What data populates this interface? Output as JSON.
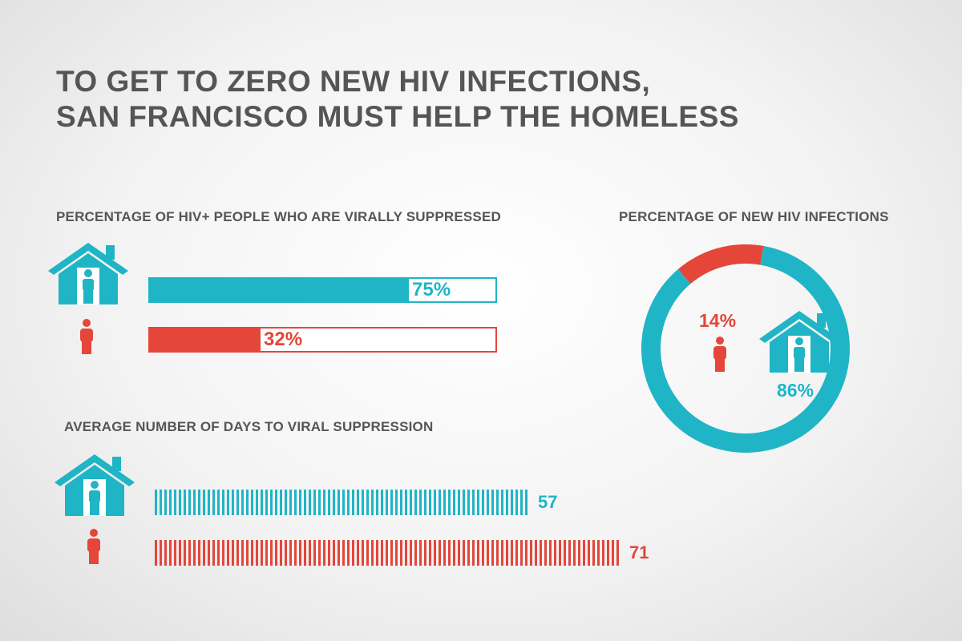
{
  "title": {
    "line1": "TO GET TO ZERO NEW HIV INFECTIONS,",
    "line2": "SAN FRANCISCO MUST HELP THE HOMELESS"
  },
  "colors": {
    "housed": "#1fb5c6",
    "homeless": "#e4463a",
    "text": "#555555"
  },
  "icons": {
    "housed": "house-with-person-icon",
    "homeless": "person-icon"
  },
  "chart_data": [
    {
      "type": "bar",
      "title": "PERCENTAGE OF HIV+ PEOPLE WHO ARE VIRALLY SUPPRESSED",
      "categories": [
        "housed",
        "homeless"
      ],
      "values": [
        75,
        32
      ],
      "labels": [
        "75%",
        "32%"
      ],
      "ylim": [
        0,
        100
      ]
    },
    {
      "type": "bar",
      "title": "AVERAGE NUMBER OF DAYS TO VIRAL SUPPRESSION",
      "categories": [
        "housed",
        "homeless"
      ],
      "values": [
        57,
        71
      ],
      "labels": [
        "57",
        "71"
      ]
    },
    {
      "type": "pie",
      "title": "PERCENTAGE OF NEW HIV INFECTIONS",
      "categories": [
        "homeless",
        "housed"
      ],
      "values": [
        14,
        86
      ],
      "labels": [
        "14%",
        "86%"
      ]
    }
  ]
}
